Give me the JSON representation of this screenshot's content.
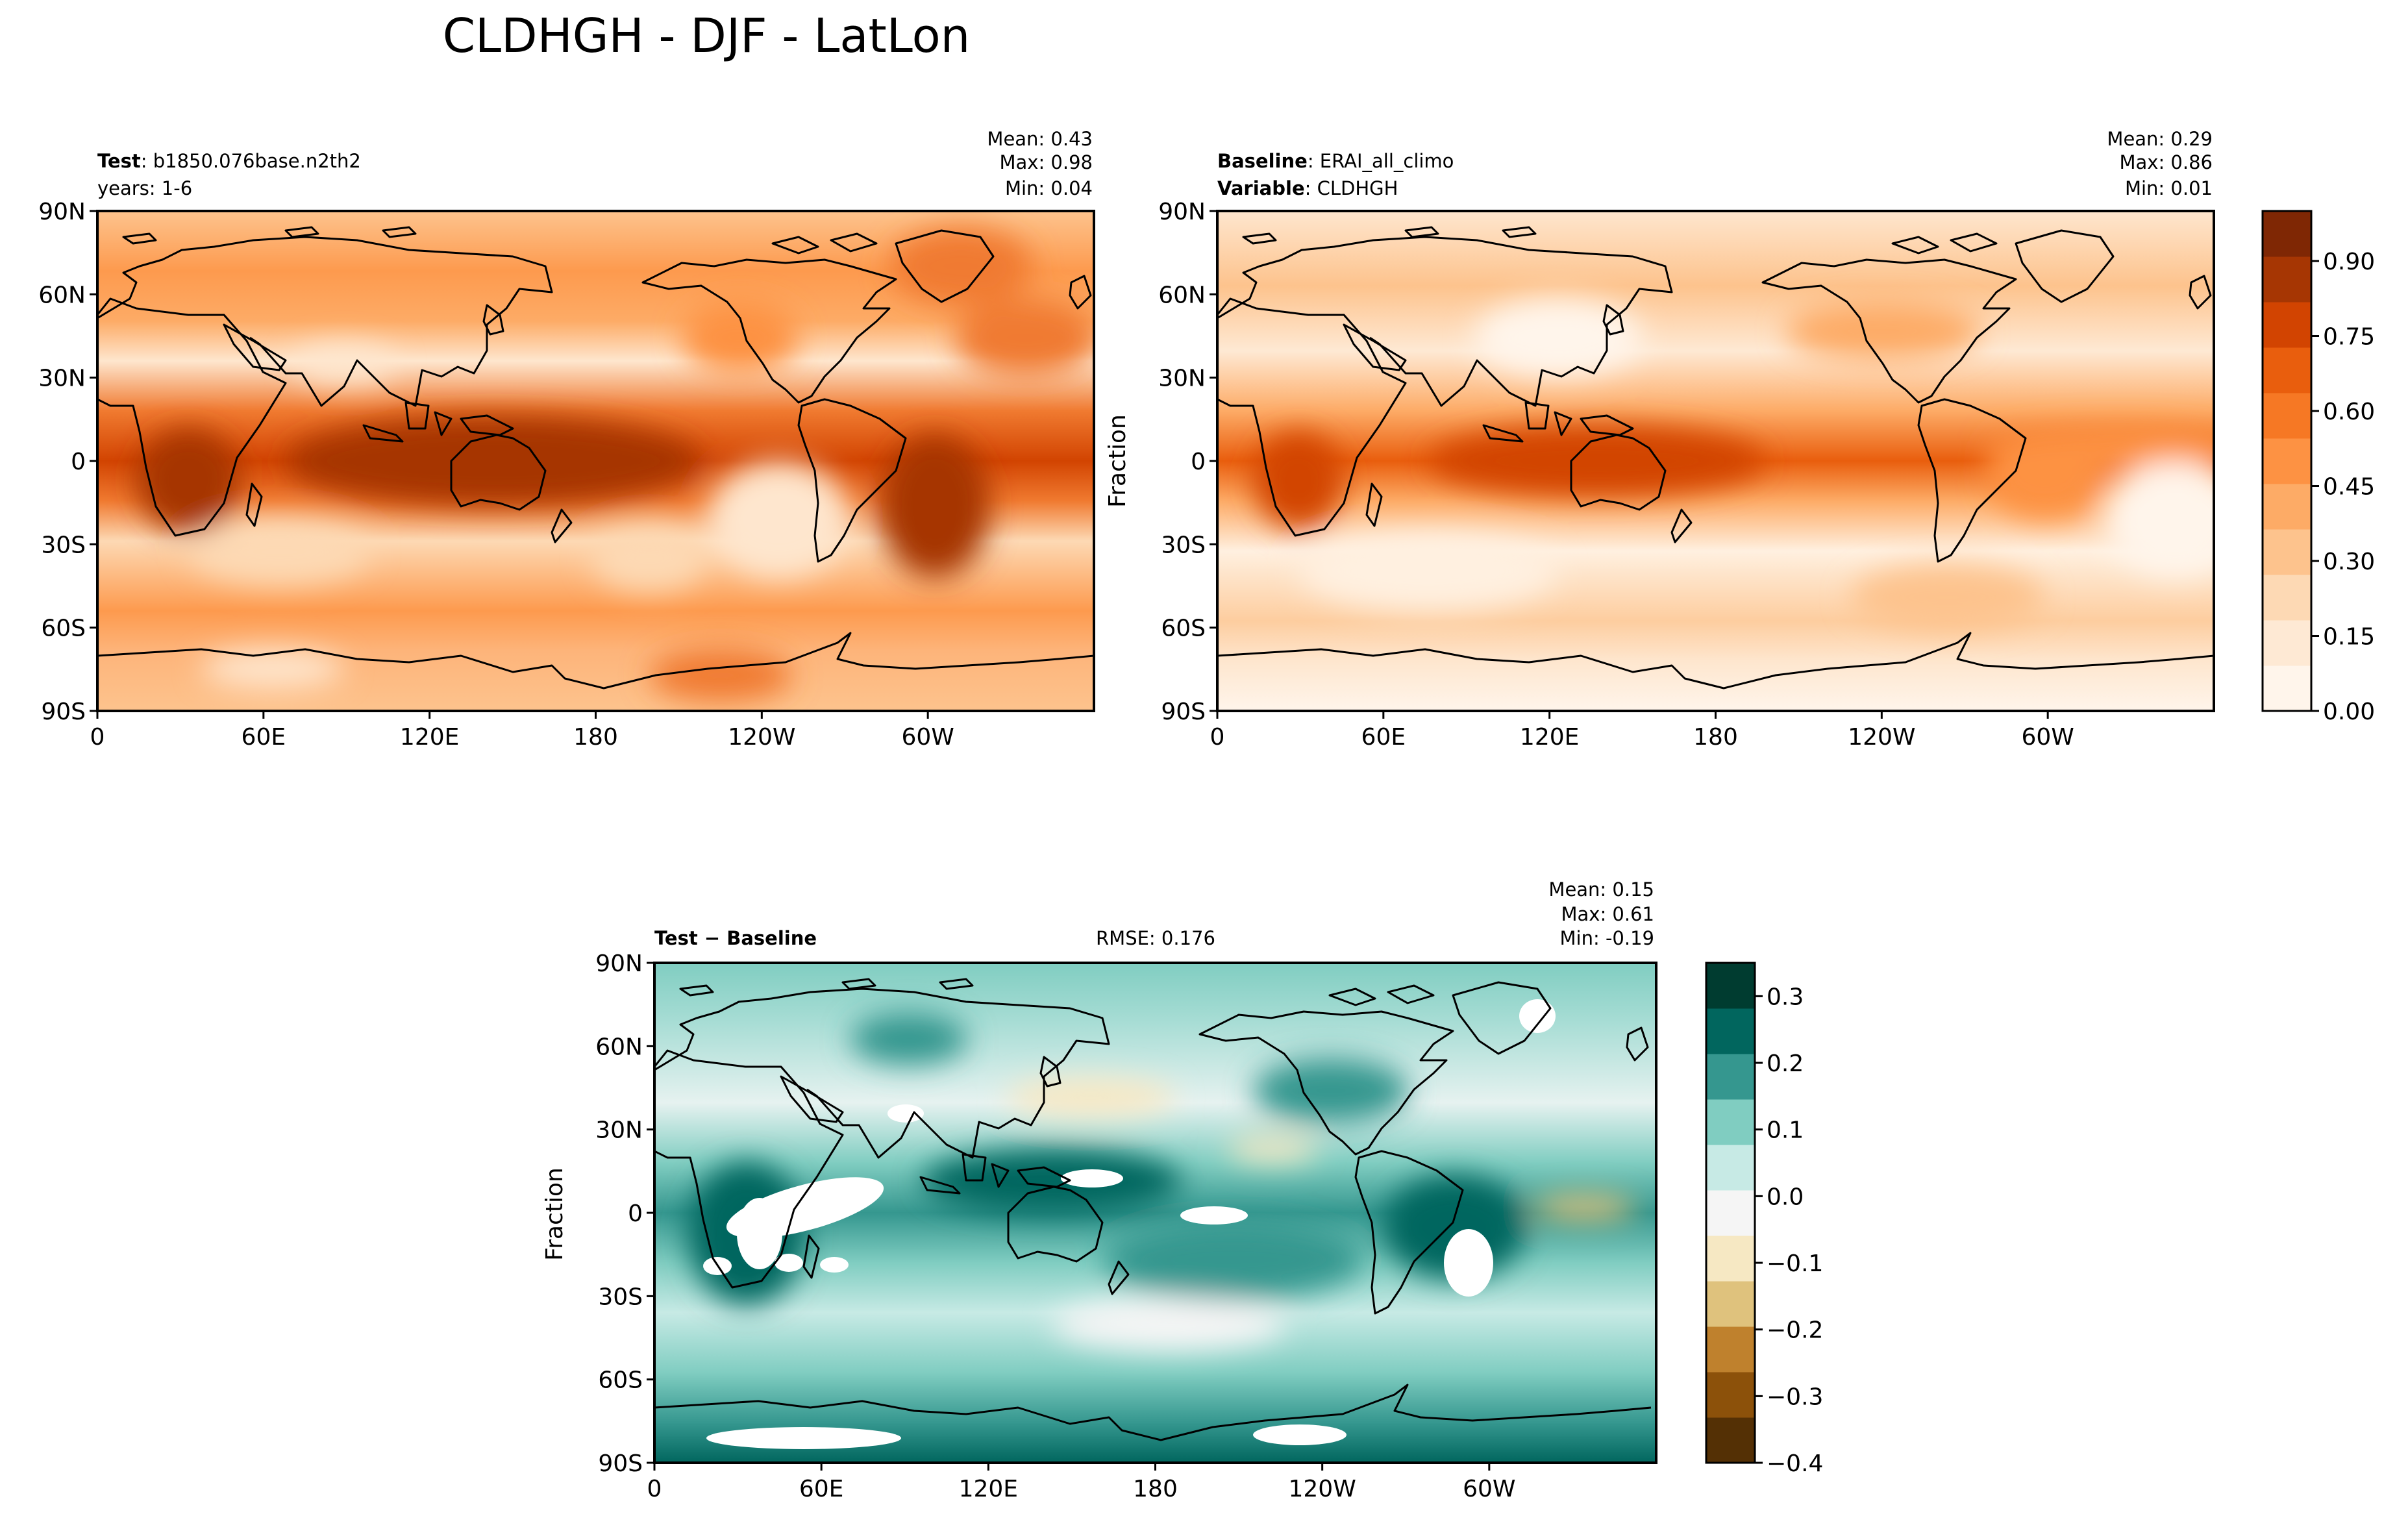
{
  "figure": {
    "title": "CLDHGH - DJF - LatLon"
  },
  "panels": [
    {
      "id": "test",
      "header": {
        "line1_bold": "Test",
        "line1_text": ": b1850.076base.n2th2",
        "line2_bold": "",
        "line2_text": "years: 1-6",
        "center_text": ""
      },
      "stats": {
        "mean": "Mean:  0.43",
        "max": "Max:  0.98",
        "min": "Min:  0.04"
      },
      "ylabel": "",
      "colormap": "Oranges"
    },
    {
      "id": "baseline",
      "header": {
        "line1_bold": "Baseline",
        "line1_text": ": ERAI_all_climo",
        "line2_bold": "Variable",
        "line2_text": ": CLDHGH",
        "center_text": ""
      },
      "stats": {
        "mean": "Mean:  0.29",
        "max": "Max:  0.86",
        "min": "Min:  0.01"
      },
      "ylabel": "Fraction",
      "colormap": "Oranges"
    },
    {
      "id": "diff",
      "header": {
        "line1_bold": "Test − Baseline",
        "line1_text": "",
        "line2_bold": "",
        "line2_text": "",
        "center_text": "RMSE: 0.176"
      },
      "stats": {
        "mean": "Mean:  0.15",
        "max": "Max:  0.61",
        "min": "Min: -0.19"
      },
      "ylabel": "Fraction",
      "colormap": "BrBG"
    }
  ],
  "axes": {
    "lat_ticks": [
      "90N",
      "60N",
      "30N",
      "0",
      "30S",
      "60S",
      "90S"
    ],
    "lon_ticks": [
      "0",
      "60E",
      "120E",
      "180",
      "120W",
      "60W"
    ]
  },
  "colorbars": {
    "fraction": {
      "ticks": [
        "0.00",
        "0.15",
        "0.30",
        "0.45",
        "0.60",
        "0.75",
        "0.90"
      ],
      "tick_values": [
        0,
        0.15,
        0.3,
        0.45,
        0.6,
        0.75,
        0.9
      ],
      "range": [
        0,
        1
      ],
      "colors": [
        "#fff5eb",
        "#fee9d4",
        "#fdd9b4",
        "#fdc38d",
        "#fdab66",
        "#fd9243",
        "#f67824",
        "#e95e0d",
        "#d24401",
        "#a63603",
        "#7f2704"
      ]
    },
    "difference": {
      "ticks": [
        "0.3",
        "0.2",
        "0.1",
        "0.0",
        "−0.1",
        "−0.2",
        "−0.3",
        "−0.4"
      ],
      "tick_values": [
        0.3,
        0.2,
        0.1,
        0,
        -0.1,
        -0.2,
        -0.3,
        -0.4
      ],
      "range": [
        -0.4,
        0.35
      ],
      "colors": [
        "#543005",
        "#8c510a",
        "#bf812d",
        "#dfc27d",
        "#f6e8c3",
        "#f5f5f5",
        "#c7eae5",
        "#80cdc1",
        "#35978f",
        "#01665e",
        "#003c30"
      ]
    }
  }
}
